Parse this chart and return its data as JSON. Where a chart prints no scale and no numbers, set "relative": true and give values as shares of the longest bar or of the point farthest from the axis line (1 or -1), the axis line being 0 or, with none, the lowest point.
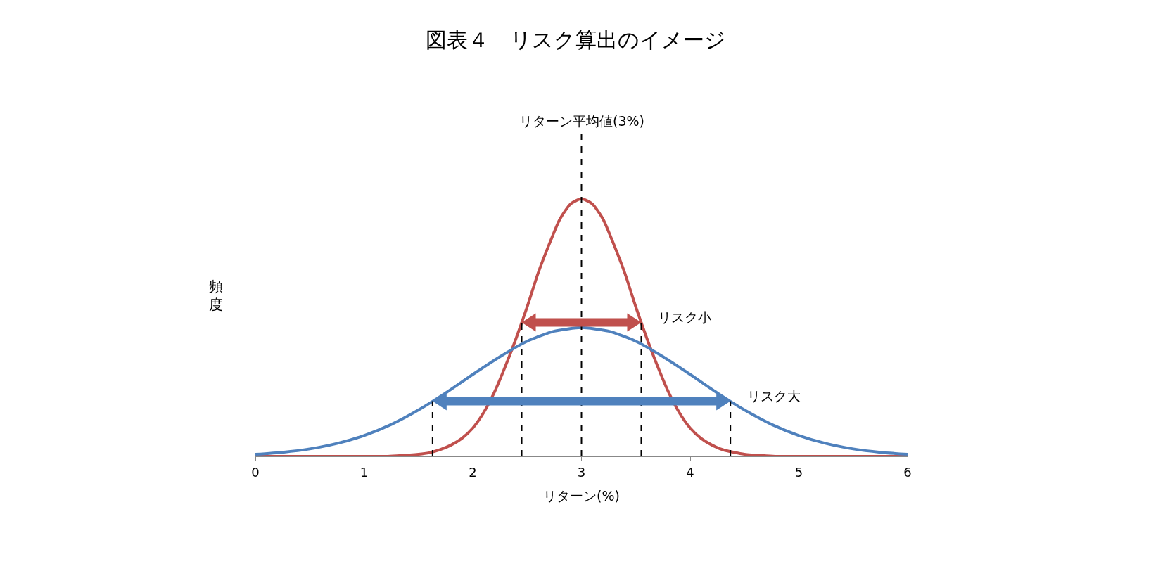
{
  "chart_data": {
    "type": "line",
    "title": "図表４　リスク算出のイメージ",
    "xlabel": "リターン(%)",
    "ylabel": "頻度",
    "relative": true,
    "xlim": [
      0,
      6
    ],
    "xticks": [
      0,
      1,
      2,
      3,
      4,
      5,
      6
    ],
    "grid": false,
    "legend": false,
    "marker": "none",
    "line_style": "solid",
    "series": [
      {
        "color": "#c0504d",
        "x": [
          0,
          1.2,
          1.3,
          1.5,
          1.6,
          1.7,
          1.8,
          1.9,
          2,
          2.1,
          2.2,
          2.3,
          2.4,
          2.5,
          2.6,
          2.7,
          2.8,
          2.9,
          3,
          3.1,
          3.2,
          3.3,
          3.4,
          3.5,
          3.6,
          3.7,
          3.8,
          3.9,
          4,
          4.1,
          4.2,
          4.3,
          4.5,
          4.7,
          4.8,
          6
        ],
        "values": [
          0,
          0,
          0.002,
          0.008,
          0.014,
          0.026,
          0.044,
          0.07,
          0.11,
          0.17,
          0.25,
          0.35,
          0.46,
          0.58,
          0.71,
          0.82,
          0.92,
          0.98,
          1,
          0.98,
          0.92,
          0.82,
          0.71,
          0.58,
          0.46,
          0.35,
          0.25,
          0.17,
          0.11,
          0.07,
          0.044,
          0.026,
          0.008,
          0.002,
          0,
          0
        ]
      },
      {
        "color": "#4f81bd",
        "x": [
          0,
          0.25,
          0.5,
          0.75,
          1,
          1.25,
          1.5,
          1.75,
          2,
          2.25,
          2.5,
          2.75,
          3,
          3.25,
          3.5,
          3.75,
          4,
          4.25,
          4.5,
          4.75,
          5,
          5.25,
          5.5,
          5.75,
          6
        ],
        "values": [
          0.008,
          0.016,
          0.029,
          0.05,
          0.081,
          0.124,
          0.18,
          0.246,
          0.318,
          0.387,
          0.447,
          0.486,
          0.5,
          0.486,
          0.447,
          0.387,
          0.318,
          0.246,
          0.18,
          0.124,
          0.081,
          0.05,
          0.029,
          0.016,
          0.008
        ]
      }
    ],
    "ref_lines": [
      {
        "axis": "x",
        "value": 3,
        "label": "リターン平均値(3%)",
        "line_style": "dashed",
        "color": "#000000"
      },
      {
        "axis": "x",
        "value": 2.45,
        "line_style": "dashed",
        "color": "#000000"
      },
      {
        "axis": "x",
        "value": 3.55,
        "line_style": "dashed",
        "color": "#000000"
      },
      {
        "axis": "x",
        "value": 1.63,
        "line_style": "dashed",
        "color": "#000000"
      },
      {
        "axis": "x",
        "value": 4.37,
        "line_style": "dashed",
        "color": "#000000"
      }
    ],
    "annotations": [
      "リスク小",
      "リスク大"
    ]
  }
}
